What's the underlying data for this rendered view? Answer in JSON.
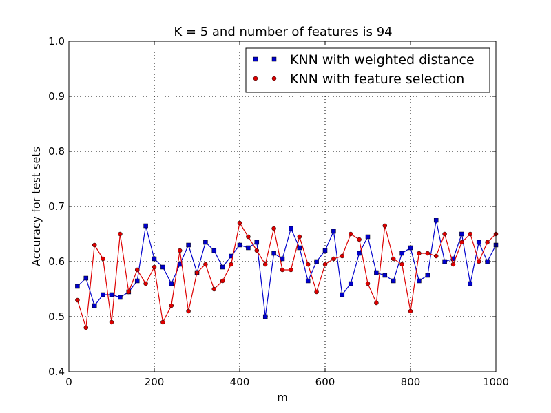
{
  "chart_data": {
    "type": "line",
    "title": "K = 5 and number of features is 94",
    "xlabel": "m",
    "ylabel": "Accuracy for test sets",
    "xlim": [
      0,
      1000
    ],
    "ylim": [
      0.4,
      1.0
    ],
    "xticks": [
      "0",
      "200",
      "400",
      "600",
      "800",
      "1000"
    ],
    "yticks": [
      "0.4",
      "0.5",
      "0.6",
      "0.7",
      "0.8",
      "0.9",
      "1.0"
    ],
    "grid": true,
    "legend_position": "top-right",
    "x": [
      20,
      40,
      60,
      80,
      100,
      120,
      140,
      160,
      180,
      200,
      220,
      240,
      260,
      280,
      300,
      320,
      340,
      360,
      380,
      400,
      420,
      440,
      460,
      480,
      500,
      520,
      540,
      560,
      580,
      600,
      620,
      640,
      660,
      680,
      700,
      720,
      740,
      760,
      780,
      800,
      820,
      840,
      860,
      880,
      900,
      920,
      940,
      960,
      980,
      1000
    ],
    "series": [
      {
        "name": "KNN with weighted distance",
        "color": "#0000cc",
        "marker": "square",
        "values": [
          0.555,
          0.57,
          0.52,
          0.54,
          0.54,
          0.535,
          0.545,
          0.565,
          0.665,
          0.605,
          0.59,
          0.56,
          0.595,
          0.63,
          0.58,
          0.635,
          0.62,
          0.59,
          0.61,
          0.63,
          0.625,
          0.635,
          0.5,
          0.615,
          0.605,
          0.66,
          0.625,
          0.565,
          0.6,
          0.62,
          0.655,
          0.54,
          0.56,
          0.615,
          0.645,
          0.58,
          0.575,
          0.565,
          0.615,
          0.625,
          0.565,
          0.575,
          0.675,
          0.6,
          0.605,
          0.65,
          0.56,
          0.635,
          0.6,
          0.63
        ]
      },
      {
        "name": "KNN with feature selection",
        "color": "#dd0000",
        "marker": "circle",
        "values": [
          0.53,
          0.48,
          0.63,
          0.605,
          0.49,
          0.65,
          0.545,
          0.585,
          0.56,
          0.59,
          0.49,
          0.52,
          0.62,
          0.51,
          0.58,
          0.595,
          0.55,
          0.565,
          0.595,
          0.67,
          0.645,
          0.62,
          0.595,
          0.66,
          0.585,
          0.585,
          0.645,
          0.595,
          0.545,
          0.595,
          0.605,
          0.61,
          0.65,
          0.64,
          0.56,
          0.525,
          0.665,
          0.605,
          0.595,
          0.51,
          0.615,
          0.615,
          0.61,
          0.65,
          0.595,
          0.635,
          0.65,
          0.6,
          0.635,
          0.65
        ]
      }
    ]
  }
}
